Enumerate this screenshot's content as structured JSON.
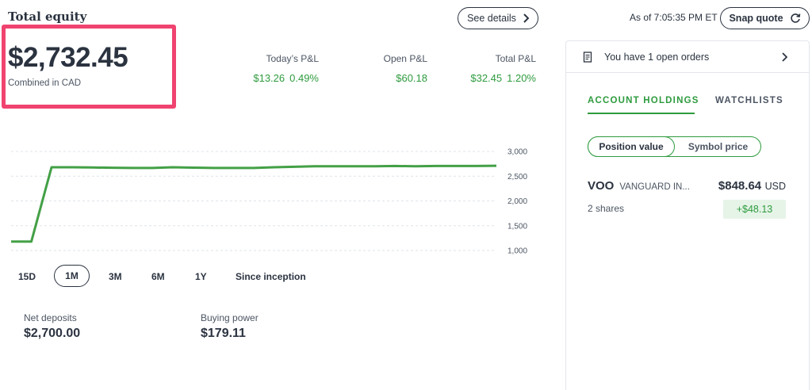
{
  "header": {
    "title": "Total equity",
    "see_details": "See details",
    "as_of": "As of 7:05:35 PM ET",
    "snap_quote": "Snap quote"
  },
  "equity": {
    "value": "$2,732.45",
    "subtitle": "Combined in CAD"
  },
  "pl": [
    {
      "label": "Today’s P&L",
      "amount": "$13.26",
      "percent": "0.49%"
    },
    {
      "label": "Open P&L",
      "amount": "$60.18",
      "percent": ""
    },
    {
      "label": "Total P&L",
      "amount": "$32.45",
      "percent": "1.20%"
    }
  ],
  "chart_data": {
    "type": "line",
    "title": "",
    "xlabel": "",
    "ylabel": "",
    "ylim": [
      800,
      3100
    ],
    "y_ticks": [
      "3,000",
      "2,500",
      "2,000",
      "1,500",
      "1,000"
    ],
    "y_tick_values": [
      3000,
      2500,
      2000,
      1500,
      1000
    ],
    "grid": true,
    "series": [
      {
        "color": "#43a046",
        "values": [
          1180,
          1180,
          2680,
          2680,
          2675,
          2670,
          2665,
          2665,
          2680,
          2672,
          2665,
          2665,
          2665,
          2680,
          2690,
          2700,
          2700,
          2700,
          2700,
          2705,
          2700,
          2705,
          2705,
          2705,
          2710
        ]
      }
    ]
  },
  "ranges": {
    "items": [
      "15D",
      "1M",
      "3M",
      "6M",
      "1Y",
      "Since inception"
    ],
    "selected": "1M"
  },
  "stats": {
    "net_deposits_label": "Net deposits",
    "net_deposits_value": "$2,700.00",
    "buying_power_label": "Buying power",
    "buying_power_value": "$179.11"
  },
  "panel": {
    "orders_text": "You have 1 open orders",
    "tabs": [
      "ACCOUNT HOLDINGS",
      "WATCHLISTS"
    ],
    "toggle": [
      "Position value",
      "Symbol price"
    ],
    "holding": {
      "symbol": "VOO",
      "name": "VANGUARD IN...",
      "value": "$848.64",
      "currency": "USD",
      "shares": "2 shares",
      "gain": "+$48.13"
    }
  },
  "colors": {
    "accent_green": "#2e9b3e",
    "highlight_pink": "#f0436f",
    "text_dark": "#2b3340"
  }
}
